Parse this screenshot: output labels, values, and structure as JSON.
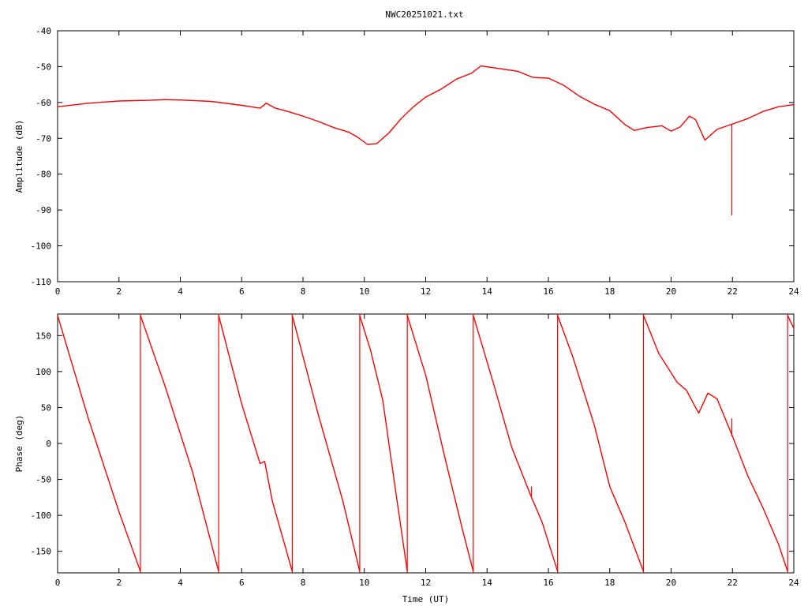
{
  "title": "NWC20251021.txt",
  "colors": {
    "series": "#ff0000",
    "axes": "#000000",
    "background": "#ffffff"
  },
  "chart_data": [
    {
      "type": "line",
      "ylabel": "Amplitude (dB)",
      "xlabel": "",
      "xlim": [
        0,
        24
      ],
      "ylim": [
        -110,
        -40
      ],
      "x_ticks": [
        "0",
        "2",
        "4",
        "6",
        "8",
        "10",
        "12",
        "14",
        "16",
        "18",
        "20",
        "22",
        "24"
      ],
      "y_ticks": [
        "-40",
        "-50",
        "-60",
        "-70",
        "-80",
        "-90",
        "-100",
        "-110"
      ],
      "grid": false,
      "legend": "none",
      "series": [
        {
          "points": [
            [
              0,
              -61.2
            ],
            [
              1,
              -60.2
            ],
            [
              2,
              -59.6
            ],
            [
              3,
              -59.4
            ],
            [
              3.5,
              -59.2
            ],
            [
              4,
              -59.3
            ],
            [
              5,
              -59.7
            ],
            [
              6,
              -60.8
            ],
            [
              6.6,
              -61.6
            ],
            [
              6.8,
              -60.2
            ],
            [
              7.1,
              -61.6
            ],
            [
              7.5,
              -62.5
            ],
            [
              8,
              -63.8
            ],
            [
              8.5,
              -65.3
            ],
            [
              9,
              -67.0
            ],
            [
              9.5,
              -68.3
            ],
            [
              9.8,
              -69.8
            ],
            [
              10.1,
              -71.7
            ],
            [
              10.4,
              -71.5
            ],
            [
              10.8,
              -68.5
            ],
            [
              11.2,
              -64.5
            ],
            [
              11.6,
              -61.2
            ],
            [
              12,
              -58.5
            ],
            [
              12.5,
              -56.3
            ],
            [
              13,
              -53.5
            ],
            [
              13.5,
              -51.8
            ],
            [
              13.8,
              -49.8
            ],
            [
              14.2,
              -50.3
            ],
            [
              15,
              -51.3
            ],
            [
              15.5,
              -53.0
            ],
            [
              16,
              -53.2
            ],
            [
              16.5,
              -55.2
            ],
            [
              17,
              -58.2
            ],
            [
              17.5,
              -60.5
            ],
            [
              18,
              -62.3
            ],
            [
              18.5,
              -66.2
            ],
            [
              18.8,
              -67.8
            ],
            [
              19.2,
              -67.0
            ],
            [
              19.7,
              -66.5
            ],
            [
              20,
              -68.0
            ],
            [
              20.3,
              -66.8
            ],
            [
              20.6,
              -63.8
            ],
            [
              20.8,
              -64.8
            ],
            [
              21.1,
              -70.5
            ],
            [
              21.5,
              -67.5
            ],
            [
              22,
              -66.0
            ],
            [
              22.5,
              -64.5
            ],
            [
              23,
              -62.5
            ],
            [
              23.5,
              -61.2
            ],
            [
              24,
              -60.6
            ]
          ],
          "spikes": [
            {
              "x": 21.98,
              "from": -66.0,
              "to": -91.5
            }
          ]
        }
      ]
    },
    {
      "type": "line",
      "ylabel": "Phase (deg)",
      "xlabel": "Time (UT)",
      "xlim": [
        0,
        24
      ],
      "ylim": [
        -180,
        180
      ],
      "x_ticks": [
        "0",
        "2",
        "4",
        "6",
        "8",
        "10",
        "12",
        "14",
        "16",
        "18",
        "20",
        "22",
        "24"
      ],
      "y_ticks": [
        "150",
        "100",
        "50",
        "0",
        "-50",
        "-100",
        "-150"
      ],
      "grid": false,
      "legend": "none",
      "series": [
        {
          "segments": [
            [
              [
                0,
                178
              ],
              [
                1,
                35
              ],
              [
                2,
                -95
              ],
              [
                2.7,
                -178
              ]
            ],
            [
              [
                2.7,
                178
              ],
              [
                3.5,
                80
              ],
              [
                4.4,
                -40
              ],
              [
                5.25,
                -178
              ]
            ],
            [
              [
                5.25,
                178
              ],
              [
                6.0,
                55
              ],
              [
                6.6,
                -28
              ],
              [
                6.75,
                -25
              ],
              [
                7.0,
                -80
              ],
              [
                7.65,
                -178
              ]
            ],
            [
              [
                7.65,
                178
              ],
              [
                8.5,
                40
              ],
              [
                9.3,
                -80
              ],
              [
                9.85,
                -178
              ]
            ],
            [
              [
                9.85,
                178
              ],
              [
                10.2,
                130
              ],
              [
                10.6,
                60
              ],
              [
                11.0,
                -60
              ],
              [
                11.4,
                -178
              ]
            ],
            [
              [
                11.4,
                178
              ],
              [
                12.0,
                95
              ],
              [
                12.6,
                -15
              ],
              [
                13.2,
                -120
              ],
              [
                13.55,
                -178
              ]
            ],
            [
              [
                13.55,
                178
              ],
              [
                14.2,
                85
              ],
              [
                14.8,
                -5
              ],
              [
                15.4,
                -70
              ],
              [
                15.8,
                -110
              ],
              [
                16.3,
                -178
              ]
            ],
            [
              [
                16.3,
                178
              ],
              [
                16.8,
                120
              ],
              [
                17.5,
                25
              ],
              [
                18.0,
                -60
              ],
              [
                18.5,
                -110
              ],
              [
                19.1,
                -178
              ]
            ],
            [
              [
                19.1,
                178
              ],
              [
                19.6,
                125
              ],
              [
                20.2,
                85
              ],
              [
                20.5,
                74
              ],
              [
                20.9,
                42
              ],
              [
                21.2,
                70
              ],
              [
                21.5,
                62
              ],
              [
                22.0,
                10
              ],
              [
                22.5,
                -45
              ],
              [
                23.0,
                -90
              ],
              [
                23.5,
                -140
              ],
              [
                23.8,
                -178
              ]
            ],
            [
              [
                23.8,
                178
              ],
              [
                24,
                160
              ]
            ]
          ],
          "jumps": [
            2.7,
            5.25,
            7.65,
            9.85,
            11.4,
            13.55,
            16.3,
            19.1,
            23.8
          ],
          "spikes": [
            {
              "x": 15.45,
              "from": -60,
              "to": -75
            },
            {
              "x": 21.98,
              "from": 35,
              "to": 10
            }
          ]
        }
      ]
    }
  ]
}
